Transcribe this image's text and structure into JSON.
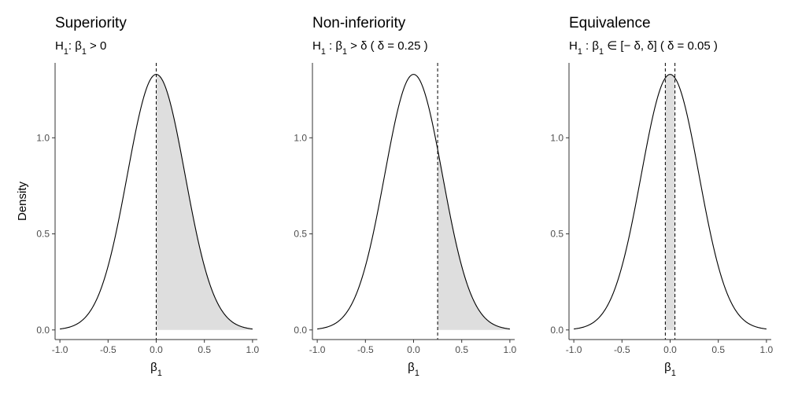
{
  "shade_color": "#dedede",
  "curve_color": "#000000",
  "y_axis_label": "Density",
  "chart_data": [
    {
      "type": "area",
      "title": "Superiority",
      "subtitle_parts": [
        [
          "H",
          ""
        ],
        [
          "1",
          "sub"
        ],
        [
          ": β",
          ""
        ],
        [
          "1",
          "sub"
        ],
        [
          " > 0",
          ""
        ]
      ],
      "xlabel_parts": [
        [
          "β",
          ""
        ],
        [
          "1",
          "sub"
        ]
      ],
      "ylabel": "Density",
      "xlim": [
        -1.0,
        1.0
      ],
      "ylim": [
        0,
        1.33
      ],
      "x_ticks": [
        -1.0,
        -0.5,
        0.0,
        0.5,
        1.0
      ],
      "x_tick_labels": [
        "-1.0",
        "-0.5",
        "0.0",
        "0.5",
        "1.0"
      ],
      "y_ticks": [
        0.0,
        0.5,
        1.0
      ],
      "y_tick_labels": [
        "0.0",
        "0.5",
        "1.0"
      ],
      "curve": {
        "distribution": "normal",
        "mean": 0.0,
        "sd": 0.3,
        "peak_density": 1.33
      },
      "shaded_region": [
        0.0,
        1.0
      ],
      "dashed_lines": [
        0.0
      ]
    },
    {
      "type": "area",
      "title": "Non-inferiority",
      "subtitle_parts": [
        [
          "H",
          ""
        ],
        [
          "1",
          "sub"
        ],
        [
          " :  β",
          ""
        ],
        [
          "1",
          "sub"
        ],
        [
          " > δ ( δ = 0.25 )",
          ""
        ]
      ],
      "xlabel_parts": [
        [
          "β",
          ""
        ],
        [
          "1",
          "sub"
        ]
      ],
      "ylabel": "",
      "xlim": [
        -1.0,
        1.0
      ],
      "ylim": [
        0,
        1.33
      ],
      "x_ticks": [
        -1.0,
        -0.5,
        0.0,
        0.5,
        1.0
      ],
      "x_tick_labels": [
        "-1.0",
        "-0.5",
        "0.0",
        "0.5",
        "1.0"
      ],
      "y_ticks": [
        0.0,
        0.5,
        1.0
      ],
      "y_tick_labels": [
        "0.0",
        "0.5",
        "1.0"
      ],
      "curve": {
        "distribution": "normal",
        "mean": 0.0,
        "sd": 0.3,
        "peak_density": 1.33
      },
      "shaded_region": [
        0.25,
        1.0
      ],
      "dashed_lines": [
        0.25
      ]
    },
    {
      "type": "area",
      "title": "Equivalence",
      "subtitle_parts": [
        [
          "H",
          ""
        ],
        [
          "1",
          "sub"
        ],
        [
          " :  β",
          ""
        ],
        [
          "1",
          "sub"
        ],
        [
          " ∈  [− δ, δ] ( δ = 0.05 )",
          ""
        ]
      ],
      "xlabel_parts": [
        [
          "β",
          ""
        ],
        [
          "1",
          "sub"
        ]
      ],
      "ylabel": "",
      "xlim": [
        -1.0,
        1.0
      ],
      "ylim": [
        0,
        1.33
      ],
      "x_ticks": [
        -1.0,
        -0.5,
        0.0,
        0.5,
        1.0
      ],
      "x_tick_labels": [
        "-1.0",
        "-0.5",
        "0.0",
        "0.5",
        "1.0"
      ],
      "y_ticks": [
        0.0,
        0.5,
        1.0
      ],
      "y_tick_labels": [
        "0.0",
        "0.5",
        "1.0"
      ],
      "curve": {
        "distribution": "normal",
        "mean": 0.0,
        "sd": 0.3,
        "peak_density": 1.33
      },
      "shaded_region": [
        -0.05,
        0.05
      ],
      "dashed_lines": [
        -0.05,
        0.05
      ]
    }
  ]
}
